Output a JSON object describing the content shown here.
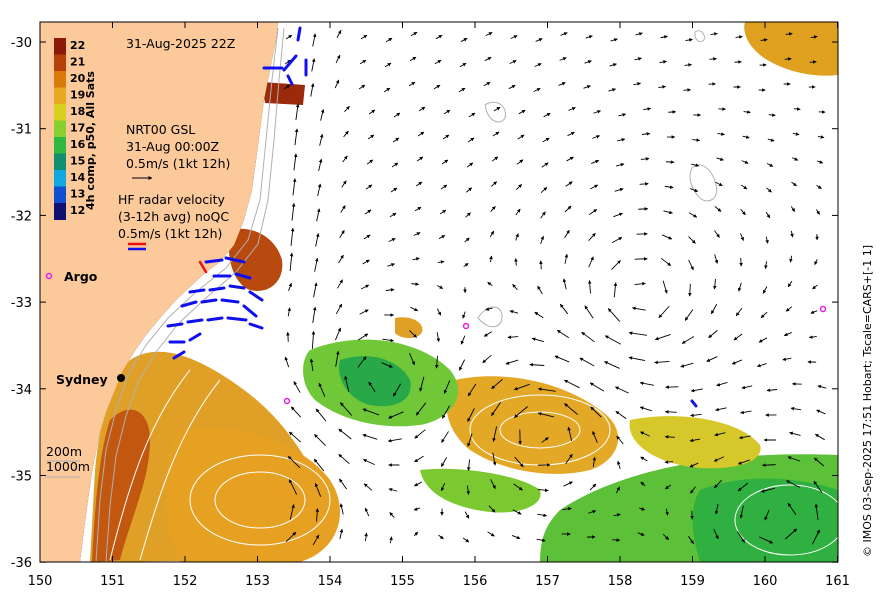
{
  "map": {
    "date_label": "31-Aug-2025 22Z",
    "x_ticks": [
      "150",
      "151",
      "152",
      "153",
      "154",
      "155",
      "156",
      "157",
      "158",
      "159",
      "160",
      "161"
    ],
    "y_ticks": [
      "-30",
      "-31",
      "-32",
      "-33",
      "-34",
      "-35",
      "-36"
    ],
    "credit": "© IMOS 03-Sep-2025 17:51 Hobart; Tscale=CARS+[-1 1]",
    "colors": {
      "land": "#fcc99b",
      "sea": "#ffffff",
      "contour": "#b0b0b0",
      "radar_blue": "#1010ee",
      "radar_red": "#ee1010",
      "argo": "#e020e0"
    }
  },
  "colorbar": {
    "title": "4h comp, p50, All Sats",
    "labels": [
      "22",
      "21",
      "20",
      "19",
      "18",
      "17",
      "16",
      "15",
      "14",
      "13",
      "12"
    ],
    "colors": [
      "#8b1a0a",
      "#b8400a",
      "#d97a0a",
      "#e8a820",
      "#d8d020",
      "#88d030",
      "#30b840",
      "#109070",
      "#10a8e0",
      "#1050d0",
      "#101070"
    ]
  },
  "legend": {
    "gsl_line1": "NRT00 GSL",
    "gsl_line2": "31-Aug 00:00Z",
    "gsl_line3": "0.5m/s (1kt 12h)",
    "hf_line1": "HF radar velocity",
    "hf_line2": "(3-12h avg) noQC",
    "hf_line3": "0.5m/s (1kt 12h)",
    "depth_200": "200m",
    "depth_1000": "1000m"
  },
  "places": {
    "argo": "Argo",
    "sydney": "Sydney"
  }
}
